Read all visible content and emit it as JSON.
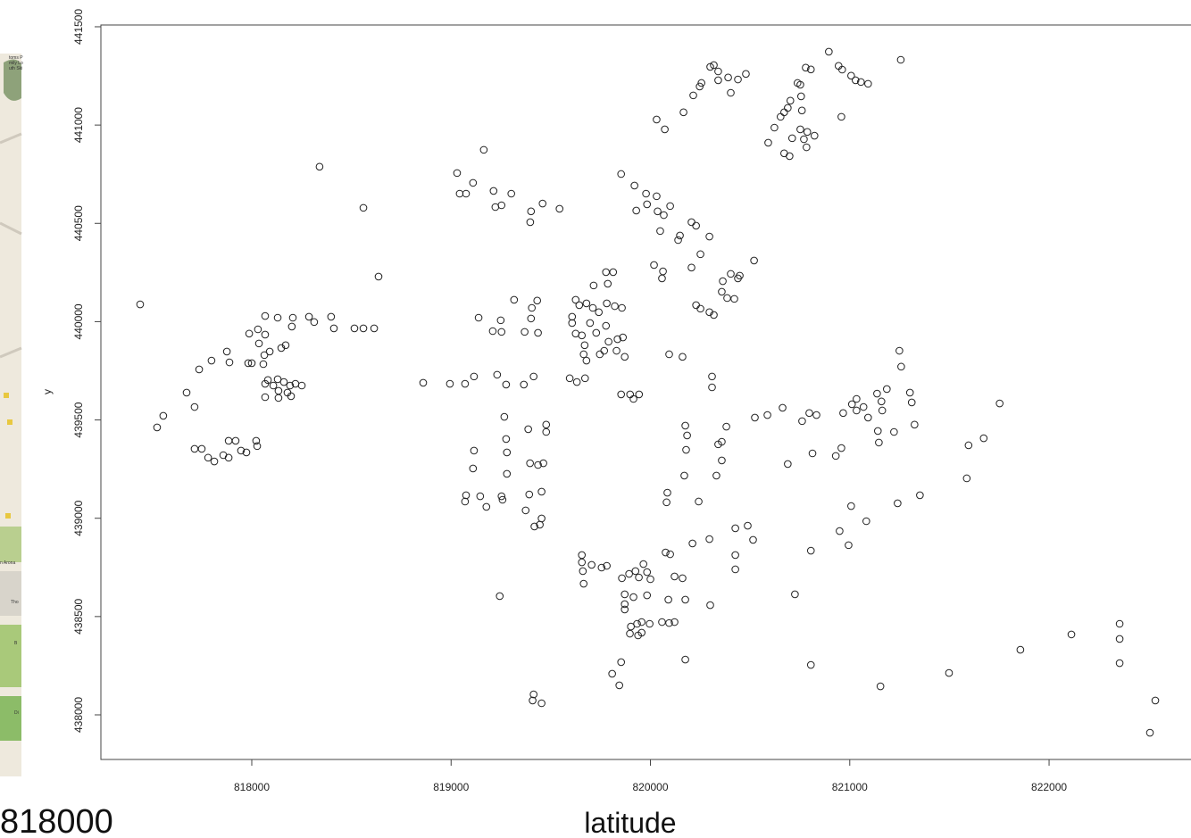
{
  "chart_data": {
    "type": "scatter",
    "xlabel": "latitude",
    "ylabel": "y",
    "caption": "818000",
    "xlim": [
      817243,
      822712
    ],
    "ylim": [
      437773,
      441509
    ],
    "xticks": [
      818000,
      819000,
      820000,
      821000,
      822000
    ],
    "yticks": [
      438000,
      438500,
      439000,
      439500,
      440000,
      440500,
      441000,
      441500
    ],
    "marker_color": "#222222",
    "marker": "open-circle",
    "x": [
      817440,
      817525,
      817556,
      817673,
      817713,
      817736,
      817798,
      817713,
      817749,
      817781,
      817812,
      817857,
      817884,
      817919,
      817884,
      817946,
      817973,
      818022,
      818027,
      817875,
      817888,
      817982,
      818000,
      817987,
      818031,
      818067,
      818067,
      818036,
      818058,
      818063,
      818090,
      818130,
      818206,
      818201,
      818148,
      818170,
      818067,
      818081,
      818067,
      818108,
      818130,
      818134,
      818134,
      818161,
      818179,
      818192,
      818197,
      818219,
      818251,
      818287,
      818313,
      818398,
      818412,
      818515,
      818560,
      818614,
      818340,
      818560,
      818636,
      818860,
      818994,
      819070,
      819115,
      819030,
      819043,
      819075,
      819110,
      819164,
      819213,
      819222,
      819253,
      819302,
      819401,
      819397,
      819459,
      819544,
      819138,
      819209,
      819249,
      819253,
      819316,
      819405,
      819401,
      819369,
      819436,
      819432,
      819231,
      819276,
      819365,
      819414,
      819115,
      819110,
      819075,
      819070,
      819146,
      819177,
      819253,
      819258,
      819267,
      819276,
      819280,
      819280,
      819374,
      819387,
      819396,
      819392,
      819436,
      819463,
      819454,
      819477,
      819477,
      819418,
      819445,
      819454,
      819244,
      819414,
      819409,
      819454,
      819595,
      819631,
      819672,
      819607,
      819625,
      819607,
      819643,
      819679,
      819711,
      819715,
      819625,
      819656,
      819697,
      819728,
      819670,
      819665,
      819679,
      819741,
      819777,
      819813,
      819786,
      819781,
      819821,
      819857,
      819777,
      819790,
      819768,
      819835,
      819862,
      819830,
      819746,
      819871,
      819853,
      819920,
      819978,
      820031,
      819929,
      819983,
      820036,
      820067,
      820099,
      820049,
      820139,
      820148,
      820206,
      820229,
      820296,
      820251,
      820206,
      820018,
      820063,
      820058,
      820363,
      820358,
      820385,
      820421,
      820403,
      820439,
      820448,
      820520,
      820229,
      820251,
      820296,
      820318,
      820094,
      820161,
      820309,
      820309,
      820031,
      820072,
      820166,
      820215,
      820247,
      820256,
      820300,
      820318,
      820340,
      820340,
      820390,
      820403,
      820439,
      820479,
      820591,
      820622,
      820653,
      820671,
      820689,
      820702,
      820738,
      820752,
      820756,
      820760,
      820711,
      820752,
      820770,
      820787,
      820783,
      820823,
      820671,
      820698,
      820779,
      820805,
      820895,
      820944,
      820962,
      821007,
      821029,
      821056,
      821092,
      820958,
      821256,
      820175,
      820184,
      820179,
      820170,
      820085,
      820081,
      820242,
      820340,
      820358,
      820331,
      820358,
      820381,
      820524,
      820587,
      820663,
      820761,
      820797,
      820833,
      820967,
      821011,
      821034,
      821034,
      821069,
      821092,
      821141,
      821146,
      821137,
      821159,
      821163,
      821186,
      821222,
      821249,
      821258,
      821302,
      821311,
      821325,
      821352,
      821240,
      821596,
      821587,
      821672,
      821752,
      820813,
      820930,
      820958,
      820689,
      821007,
      820949,
      820994,
      821083,
      820805,
      820725,
      820805,
      821154,
      820488,
      820515,
      820426,
      820426,
      820426,
      820296,
      820211,
      820300,
      820076,
      820099,
      820121,
      820161,
      820175,
      820090,
      820058,
      820094,
      820121,
      819996,
      819956,
      819933,
      819902,
      819897,
      819938,
      819956,
      819965,
      819925,
      819942,
      819983,
      820000,
      819893,
      819857,
      819871,
      819871,
      819871,
      819915,
      819983,
      819755,
      819781,
      819705,
      819656,
      819656,
      819661,
      819665,
      819853,
      819808,
      819844,
      820175,
      821498,
      821856,
      822112,
      822354,
      822354,
      822354,
      822533,
      822506,
      819853,
      819898,
      819915,
      819943
    ],
    "y": [
      440088,
      439462,
      439521,
      439639,
      439566,
      439757,
      439802,
      439353,
      439353,
      439308,
      439289,
      439321,
      439394,
      439394,
      439308,
      439344,
      439335,
      439394,
      439367,
      439848,
      439793,
      439789,
      439789,
      439939,
      439961,
      440029,
      439934,
      439889,
      439784,
      439830,
      439848,
      440020,
      440020,
      439975,
      439866,
      439880,
      439684,
      439703,
      439616,
      439675,
      439707,
      439648,
      439612,
      439693,
      439639,
      439675,
      439621,
      439684,
      439675,
      440025,
      439998,
      440025,
      439966,
      439966,
      439966,
      439966,
      440788,
      440579,
      440229,
      439689,
      439684,
      439684,
      439721,
      440756,
      440651,
      440651,
      440706,
      440874,
      440665,
      440583,
      440592,
      440651,
      440561,
      440506,
      440601,
      440574,
      440020,
      439952,
      440007,
      439948,
      440111,
      440070,
      440016,
      439948,
      439943,
      440107,
      439730,
      439680,
      439680,
      439721,
      439344,
      439253,
      439117,
      439085,
      439112,
      439058,
      439112,
      439094,
      439516,
      439403,
      439335,
      439226,
      439040,
      439453,
      439280,
      439121,
      439271,
      439280,
      439135,
      439476,
      439439,
      438958,
      438967,
      438999,
      438604,
      438104,
      438073,
      438059,
      439712,
      439693,
      439712,
      440025,
      440111,
      439993,
      440084,
      440093,
      440070,
      440184,
      439939,
      439930,
      439993,
      439943,
      439880,
      439834,
      439802,
      440048,
      440252,
      440252,
      440193,
      440093,
      440079,
      440070,
      439979,
      439898,
      439852,
      439911,
      439920,
      439852,
      439834,
      439821,
      440751,
      440692,
      440651,
      440638,
      440565,
      440597,
      440561,
      440542,
      440588,
      440461,
      440415,
      440438,
      440506,
      440488,
      440433,
      440343,
      440275,
      440288,
      440256,
      440220,
      440206,
      440152,
      440120,
      440116,
      440243,
      440220,
      440234,
      440311,
      440084,
      440066,
      440048,
      440034,
      439834,
      439821,
      439721,
      439666,
      441028,
      440978,
      441065,
      441151,
      441196,
      441214,
      441296,
      441305,
      441228,
      441273,
      441242,
      441164,
      441232,
      441260,
      440910,
      440987,
      441042,
      441065,
      441087,
      441124,
      441214,
      441205,
      441146,
      441074,
      440933,
      440978,
      440928,
      440965,
      440887,
      440946,
      440856,
      440842,
      441292,
      441283,
      441373,
      441301,
      441282,
      441251,
      441228,
      441219,
      441210,
      441042,
      441332,
      439471,
      439421,
      439348,
      439217,
      439130,
      439081,
      439085,
      439376,
      439389,
      439217,
      439294,
      439466,
      439512,
      439525,
      439562,
      439494,
      439535,
      439525,
      439535,
      439580,
      439607,
      439548,
      439566,
      439512,
      439444,
      439385,
      439634,
      439594,
      439548,
      439657,
      439439,
      439852,
      439771,
      439639,
      439589,
      439476,
      439117,
      439076,
      439371,
      439203,
      439407,
      439584,
      439330,
      439317,
      439357,
      439276,
      439062,
      438935,
      438863,
      438985,
      438835,
      438613,
      438254,
      438145,
      438962,
      438890,
      438949,
      438813,
      438740,
      438894,
      438872,
      438558,
      438826,
      438817,
      438704,
      438695,
      438586,
      438586,
      438472,
      438467,
      438472,
      438463,
      438472,
      438463,
      438449,
      438413,
      438404,
      438418,
      438767,
      438731,
      438699,
      438726,
      438690,
      438717,
      438695,
      438613,
      438563,
      438536,
      438599,
      438608,
      438749,
      438758,
      438763,
      438813,
      438776,
      438731,
      438667,
      438268,
      438209,
      438150,
      438281,
      438213,
      438331,
      438409,
      438463,
      438386,
      438263,
      438073,
      437909,
      439630,
      439630,
      439607,
      439630
    ]
  },
  "map": {
    "labels": [
      "toms P",
      "mily Lo",
      "uth Ski",
      "n Arona",
      "Tho",
      "B",
      "Di"
    ]
  }
}
